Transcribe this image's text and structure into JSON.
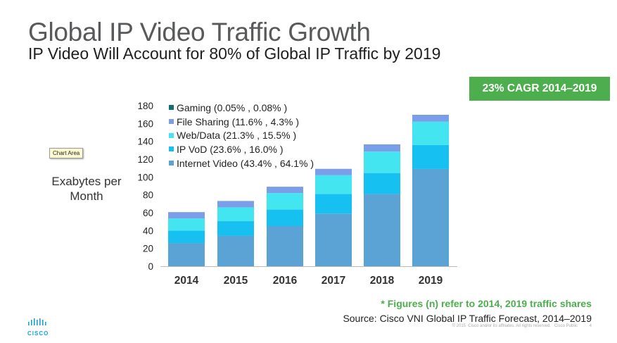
{
  "slide": {
    "title": "Global IP Video Traffic Growth",
    "subtitle": "IP Video Will Account for 80% of Global IP Traffic by 2019",
    "cagr_badge": "23% CAGR 2014–2019",
    "tooltip": "Chart Area",
    "footnote": "* Figures (n) refer to 2014, 2019 traffic shares",
    "source": "Source: Cisco VNI Global IP Traffic Forecast, 2014–2019",
    "copyright": "© 2015  Cisco and/or its affiliates. All rights reserved.   Cisco Public          4",
    "logo_text": "CISCO"
  },
  "colors": {
    "badge": "#4cae4c",
    "footnote": "#4cae4c",
    "logo": "#1ba0d7"
  },
  "chart_data": {
    "type": "bar",
    "stacked": true,
    "categories": [
      "2014",
      "2015",
      "2016",
      "2017",
      "2018",
      "2019"
    ],
    "ylabel": "Exabytes per Month",
    "ylim": [
      0,
      180
    ],
    "yticks": [
      0,
      20,
      40,
      60,
      80,
      100,
      120,
      140,
      160,
      180
    ],
    "grid": false,
    "legend_position": "top-left",
    "series": [
      {
        "name": "Internet Video (43.4% , 64.1% )",
        "color": "#5ba3d4",
        "values": [
          26,
          34,
          45,
          59,
          81,
          109
        ]
      },
      {
        "name": "IP VoD (23.6% , 16.0% )",
        "color": "#16c0f0",
        "values": [
          14,
          16.5,
          18.5,
          22,
          23.5,
          27
        ]
      },
      {
        "name": "Web/Data (21.3% , 15.5% )",
        "color": "#43e5f0",
        "values": [
          13.5,
          15.5,
          18.5,
          21,
          24,
          26
        ]
      },
      {
        "name": "File Sharing (11.6% , 4.3% )",
        "color": "#7a9ee8",
        "values": [
          7,
          7,
          7,
          7,
          8,
          7.5
        ]
      },
      {
        "name": "Gaming (0.05% , 0.08% )",
        "color": "#0f6e76",
        "values": [
          0.1,
          0.1,
          0.1,
          0.1,
          0.1,
          0.2
        ]
      }
    ]
  }
}
